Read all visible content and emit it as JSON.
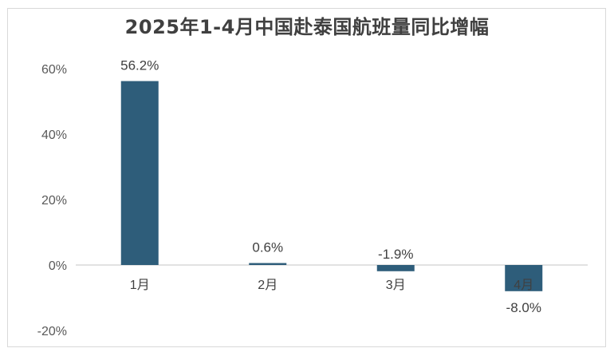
{
  "chart_data": {
    "type": "bar",
    "title": "2025年1-4月中国赴泰国航班量同比增幅",
    "categories": [
      "1月",
      "2月",
      "3月",
      "4月"
    ],
    "values": [
      56.2,
      0.6,
      -1.9,
      -8.0
    ],
    "data_labels": [
      "56.2%",
      "0.6%",
      "-1.9%",
      "-8.0%"
    ],
    "ylim": [
      -20,
      60
    ],
    "yticks": [
      "-20%",
      "0%",
      "20%",
      "40%",
      "60%"
    ],
    "ytick_values": [
      -20,
      0,
      20,
      40,
      60
    ],
    "grid": false,
    "legend": "none",
    "bar_color": "#2e5d7a"
  }
}
